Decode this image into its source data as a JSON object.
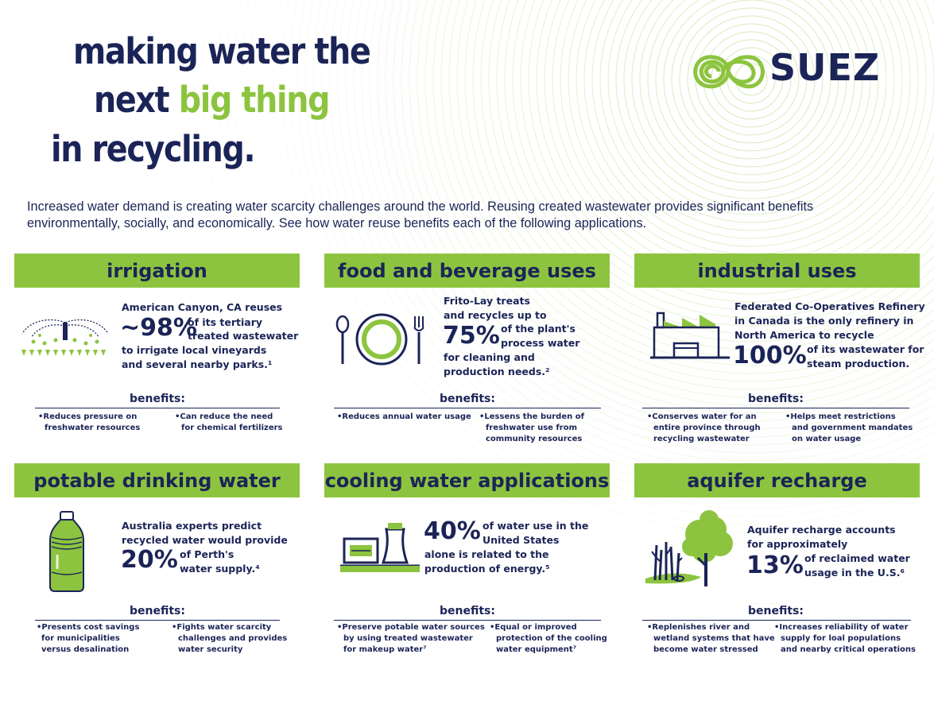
{
  "headline": {
    "line1": "making water the",
    "line2_a": "next ",
    "line2_b": "big thing",
    "line3": "in recycling."
  },
  "logo": {
    "text": "SUEZ",
    "icon": "suez-swirl-icon"
  },
  "intro": "Increased water demand is creating water scarcity challenges around the world. Reusing created wastewater provides significant benefits environmentally, socially, and economically. See how water reuse benefits each  of the following applications.",
  "benefits_label": "benefits:",
  "colors": {
    "navy": "#1b2457",
    "green": "#8cc43f"
  },
  "sections": {
    "irrigation": {
      "title": "irrigation",
      "icon": "sprinkler-icon",
      "l1": "American Canyon, CA reuses",
      "big": "~98%",
      "big_a": "of its tertiary",
      "big_b": "treated wastewater",
      "l2": "to irrigate local vineyards",
      "l3": "and several nearby parks.¹",
      "b1a": "•Reduces pressure on",
      "b1b": "freshwater resources",
      "b2a": "•Can reduce the need",
      "b2b": "for chemical fertilizers"
    },
    "food": {
      "title": "food and beverage uses",
      "icon": "plate-utensils-icon",
      "l1": "Frito-Lay treats",
      "l2": "and recycles up to",
      "big": "75%",
      "big_a": "of the plant's",
      "big_b": "process water",
      "l3": "for cleaning and",
      "l4": "production needs.²",
      "b1a": "•Reduces annual water usage",
      "b2a": "•Lessens the burden of",
      "b2b": "freshwater use from",
      "b2c": "community resources"
    },
    "industrial": {
      "title": "industrial uses",
      "icon": "factory-icon",
      "l1": "Federated Co-Operatives Refinery",
      "l2": "in Canada is the only refinery in",
      "l3": "North America to recycle",
      "big": "100%",
      "big_a": "of its wastewater for",
      "big_b": "steam production.",
      "b1a": "•Conserves water for an",
      "b1b": "entire province through",
      "b1c": "recycling wastewater",
      "b2a": "•Helps meet restrictions",
      "b2b": "and government mandates",
      "b2c": "on water usage"
    },
    "potable": {
      "title": "potable drinking water",
      "icon": "water-bottle-icon",
      "l1": "Australia experts predict",
      "l2": "recycled water would provide",
      "big": "20%",
      "big_a": "of Perth's",
      "big_b": "water supply.⁴",
      "b1a": "•Presents cost savings",
      "b1b": "for municipalities",
      "b1c": "versus desalination",
      "b2a": "•Fights water scarcity",
      "b2b": "challenges and provides",
      "b2c": "water security"
    },
    "cooling": {
      "title": "cooling water applications",
      "icon": "cooling-tower-icon",
      "big": "40%",
      "big_a": "of water use in the",
      "big_b": "United States",
      "l1": "alone is related to the",
      "l2": "production of energy.⁵",
      "b1a": "•Preserve potable water sources",
      "b1b": "by using treated wastewater",
      "b1c": "for makeup water⁷",
      "b2a": "•Equal or improved",
      "b2b": "protection of the cooling",
      "b2c": "water equipment⁷"
    },
    "aquifer": {
      "title": "aquifer recharge",
      "icon": "tree-plants-icon",
      "l1": "Aquifer recharge accounts",
      "l2": "for approximately",
      "big": "13%",
      "big_a": "of reclaimed water",
      "big_b": "usage in the U.S.⁶",
      "b1a": "•Replenishes river and",
      "b1b": "wetland systems that have",
      "b1c": "become water stressed",
      "b2a": "•Increases reliability of water",
      "b2b": "supply for loal populations",
      "b2c": "and nearby critical operations"
    }
  }
}
